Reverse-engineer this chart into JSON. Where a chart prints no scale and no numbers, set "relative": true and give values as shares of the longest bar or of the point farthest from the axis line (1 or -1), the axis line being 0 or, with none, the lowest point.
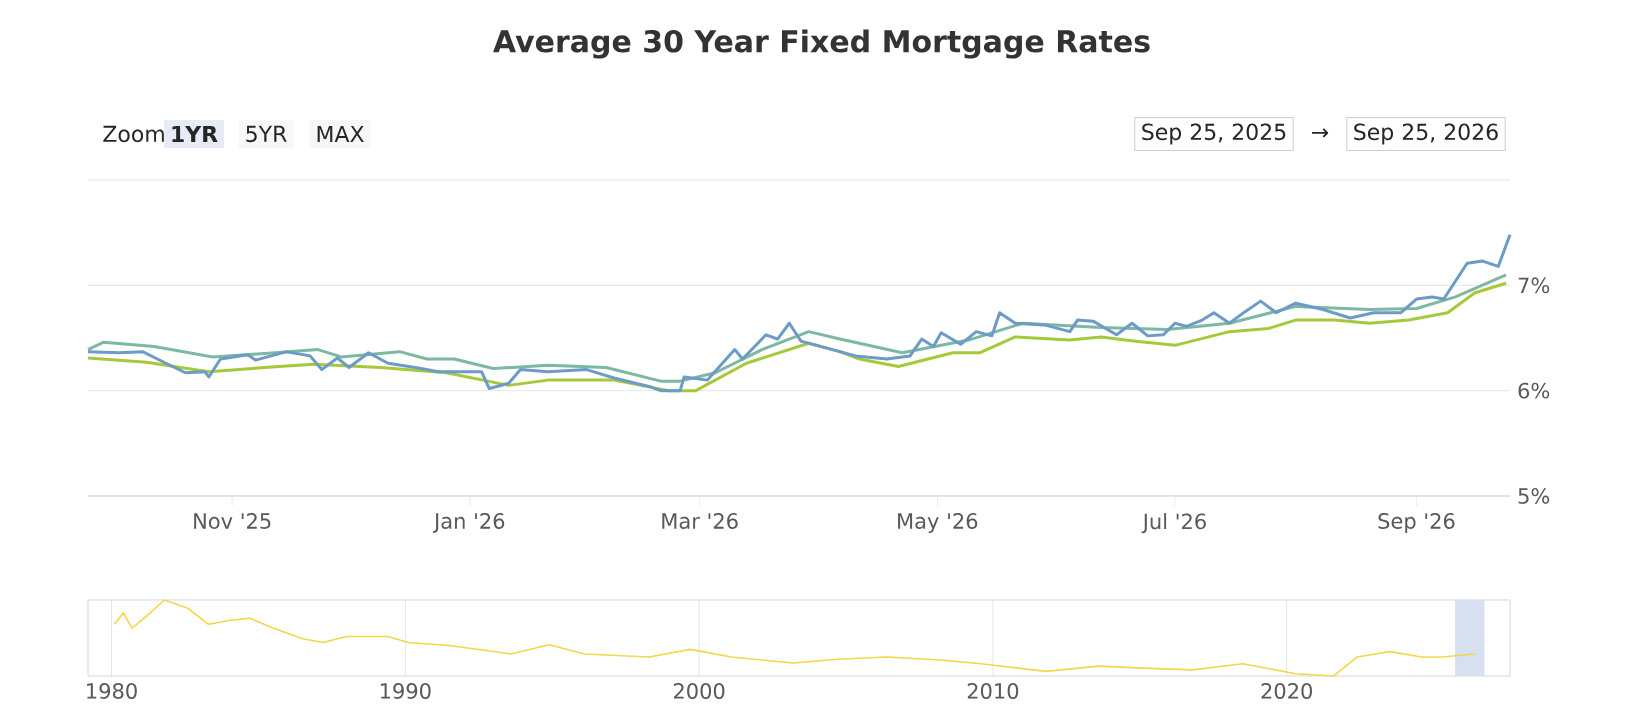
{
  "chart_data": [
    {
      "type": "line",
      "title": "Average 30 Year Fixed Mortgage Rates",
      "marker": "none",
      "grid": "y",
      "annotations": [
        "Zoom",
        "1YR",
        "5YR",
        "MAX",
        "Sep 25, 2025",
        "→",
        "Sep 25, 2026"
      ],
      "xlim": [
        "2025-09-25",
        "2026-09-25"
      ],
      "xticks": [
        {
          "value": "2025-11-01",
          "label": "Nov '25"
        },
        {
          "value": "2026-01-01",
          "label": "Jan '26"
        },
        {
          "value": "2026-03-01",
          "label": "Mar '26"
        },
        {
          "value": "2026-05-01",
          "label": "May '26"
        },
        {
          "value": "2026-07-01",
          "label": "Jul '26"
        },
        {
          "value": "2026-09-01",
          "label": "Sep '26"
        }
      ],
      "ylim": [
        5,
        8
      ],
      "yticks": [
        {
          "value": 5,
          "label": "5%"
        },
        {
          "value": 6,
          "label": "6%"
        },
        {
          "value": 7,
          "label": "7%"
        },
        {
          "value": 8,
          "label": null
        }
      ],
      "series": [
        {
          "color": "#a6c93a",
          "x": [
            "2025-09-25",
            "2025-10-10",
            "2025-10-26",
            "2025-11-13",
            "2025-11-22",
            "2025-12-09",
            "2025-12-26",
            "2026-01-11",
            "2026-01-21",
            "2026-02-07",
            "2026-02-21",
            "2026-02-28",
            "2026-03-13",
            "2026-03-29",
            "2026-04-06",
            "2026-04-11",
            "2026-04-21",
            "2026-05-05",
            "2026-05-12",
            "2026-05-21",
            "2026-06-04",
            "2026-06-12",
            "2026-06-21",
            "2026-07-01",
            "2026-07-15",
            "2026-07-25",
            "2026-08-01",
            "2026-08-11",
            "2026-08-20",
            "2026-08-30",
            "2026-09-09",
            "2026-09-16",
            "2026-09-24"
          ],
          "values": [
            6.31,
            6.27,
            6.18,
            6.23,
            6.25,
            6.22,
            6.17,
            6.05,
            6.1,
            6.1,
            6.0,
            6.0,
            6.26,
            6.45,
            6.37,
            6.3,
            6.23,
            6.36,
            6.36,
            6.51,
            6.48,
            6.51,
            6.47,
            6.43,
            6.56,
            6.59,
            6.67,
            6.67,
            6.64,
            6.67,
            6.74,
            6.93,
            7.02
          ]
        },
        {
          "color": "#7db8a2",
          "x": [
            "2025-09-25",
            "2025-09-29",
            "2025-10-12",
            "2025-10-27",
            "2025-11-12",
            "2025-11-23",
            "2025-11-29",
            "2025-12-14",
            "2025-12-21",
            "2025-12-28",
            "2026-01-07",
            "2026-01-21",
            "2026-02-05",
            "2026-02-19",
            "2026-02-24",
            "2026-03-05",
            "2026-03-17",
            "2026-03-29",
            "2026-04-06",
            "2026-04-22",
            "2026-05-09",
            "2026-05-23",
            "2026-06-12",
            "2026-06-29",
            "2026-07-15",
            "2026-08-01",
            "2026-08-20",
            "2026-09-01",
            "2026-09-11",
            "2026-09-24"
          ],
          "values": [
            6.39,
            6.46,
            6.42,
            6.32,
            6.36,
            6.39,
            6.32,
            6.37,
            6.3,
            6.3,
            6.21,
            6.24,
            6.22,
            6.09,
            6.09,
            6.17,
            6.39,
            6.56,
            6.49,
            6.36,
            6.48,
            6.64,
            6.6,
            6.58,
            6.64,
            6.8,
            6.77,
            6.78,
            6.89,
            7.1
          ]
        },
        {
          "color": "#6b9bc6",
          "x": [
            "2025-09-25",
            "2025-10-03",
            "2025-10-09",
            "2025-10-15",
            "2025-10-20",
            "2025-10-25",
            "2025-10-26",
            "2025-10-29",
            "2025-11-05",
            "2025-11-07",
            "2025-11-15",
            "2025-11-21",
            "2025-11-24",
            "2025-11-28",
            "2025-12-01",
            "2025-12-06",
            "2025-12-11",
            "2025-12-18",
            "2025-12-24",
            "2026-01-04",
            "2026-01-06",
            "2026-01-11",
            "2026-01-14",
            "2026-01-21",
            "2026-01-31",
            "2026-02-07",
            "2026-02-16",
            "2026-02-19",
            "2026-02-24",
            "2026-02-25",
            "2026-03-03",
            "2026-03-10",
            "2026-03-12",
            "2026-03-18",
            "2026-03-21",
            "2026-03-24",
            "2026-03-27",
            "2026-04-01",
            "2026-04-10",
            "2026-04-18",
            "2026-04-24",
            "2026-04-27",
            "2026-04-30",
            "2026-05-02",
            "2026-05-07",
            "2026-05-11",
            "2026-05-15",
            "2026-05-17",
            "2026-05-21",
            "2026-05-29",
            "2026-06-04",
            "2026-06-06",
            "2026-06-10",
            "2026-06-16",
            "2026-06-20",
            "2026-06-24",
            "2026-06-28",
            "2026-07-01",
            "2026-07-04",
            "2026-07-08",
            "2026-07-11",
            "2026-07-15",
            "2026-07-19",
            "2026-07-23",
            "2026-07-27",
            "2026-08-01",
            "2026-08-08",
            "2026-08-15",
            "2026-08-21",
            "2026-08-28",
            "2026-09-01",
            "2026-09-05",
            "2026-09-08",
            "2026-09-14",
            "2026-09-18",
            "2026-09-22",
            "2026-09-25"
          ],
          "values": [
            6.37,
            6.36,
            6.37,
            6.26,
            6.17,
            6.18,
            6.13,
            6.3,
            6.34,
            6.29,
            6.37,
            6.33,
            6.2,
            6.31,
            6.22,
            6.36,
            6.26,
            6.22,
            6.18,
            6.18,
            6.02,
            6.07,
            6.2,
            6.18,
            6.2,
            6.12,
            6.04,
            6.0,
            6.0,
            6.13,
            6.1,
            6.39,
            6.3,
            6.53,
            6.49,
            6.64,
            6.47,
            6.42,
            6.33,
            6.3,
            6.33,
            6.49,
            6.42,
            6.55,
            6.44,
            6.56,
            6.52,
            6.74,
            6.64,
            6.62,
            6.56,
            6.67,
            6.66,
            6.53,
            6.64,
            6.52,
            6.53,
            6.64,
            6.61,
            6.67,
            6.74,
            6.64,
            6.75,
            6.85,
            6.74,
            6.83,
            6.77,
            6.69,
            6.74,
            6.74,
            6.87,
            6.89,
            6.87,
            7.21,
            7.23,
            7.18,
            7.48
          ]
        }
      ]
    },
    {
      "type": "line",
      "relative": true,
      "marker": "none",
      "grid": "x",
      "xlim": [
        1979.2,
        2027.6
      ],
      "xticks": [
        1980,
        1990,
        2000,
        2010,
        2020
      ],
      "bands": [
        {
          "axis": "x",
          "from": 2025.73,
          "to": 2026.73,
          "color": "#d6e0f0"
        }
      ],
      "series": [
        {
          "color": "#f2d74b",
          "x": [
            1980.1,
            1980.4,
            1980.7,
            1981.2,
            1981.8,
            1982.6,
            1983.3,
            1984.0,
            1984.7,
            1985.5,
            1986.5,
            1987.2,
            1988.0,
            1989.4,
            1990.1,
            1991.5,
            1993.6,
            1994.9,
            1996.1,
            1998.3,
            1999.7,
            2001.1,
            2003.2,
            2004.7,
            2006.4,
            2008.2,
            2009.6,
            2011.8,
            2013.6,
            2015.3,
            2016.8,
            2018.5,
            2020.3,
            2021.6,
            2022.4,
            2023.5,
            2024.6,
            2025.3,
            2026.4
          ],
          "values": [
            0.68,
            0.83,
            0.63,
            0.79,
            1.0,
            0.89,
            0.68,
            0.73,
            0.76,
            0.63,
            0.49,
            0.44,
            0.52,
            0.52,
            0.44,
            0.4,
            0.29,
            0.41,
            0.29,
            0.25,
            0.35,
            0.25,
            0.17,
            0.22,
            0.25,
            0.21,
            0.16,
            0.06,
            0.13,
            0.1,
            0.08,
            0.16,
            0.03,
            0.0,
            0.25,
            0.32,
            0.25,
            0.25,
            0.29
          ]
        }
      ]
    }
  ]
}
